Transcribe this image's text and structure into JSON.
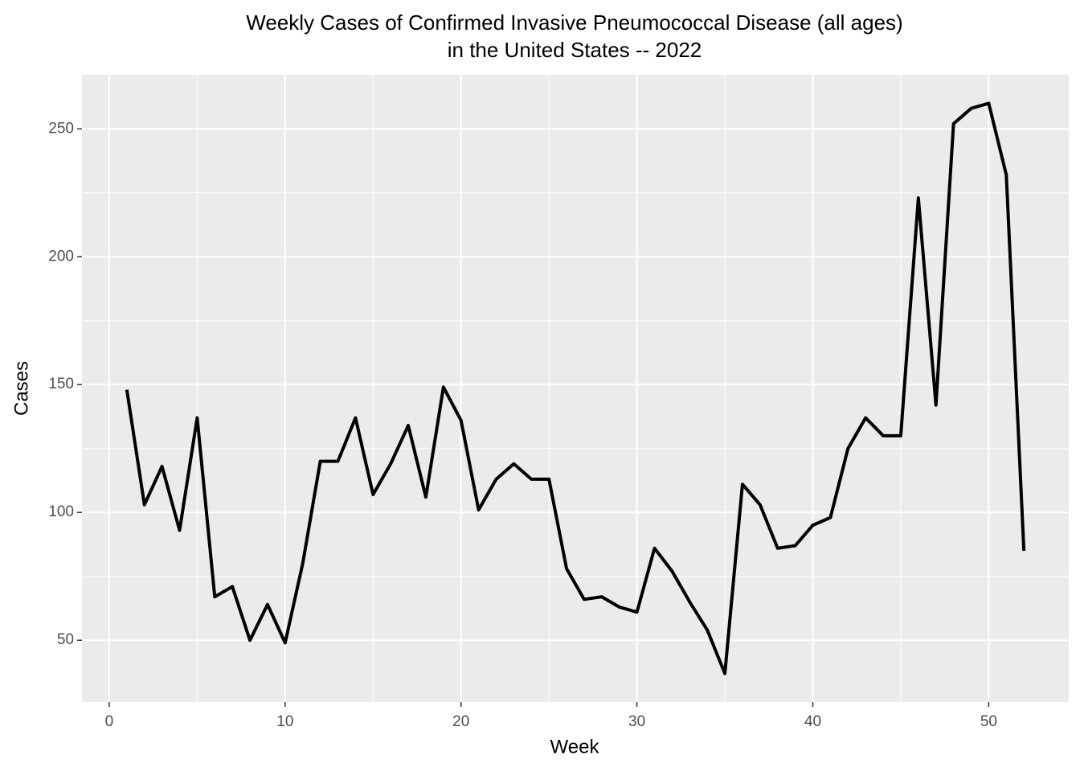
{
  "chart_data": {
    "type": "line",
    "title": [
      "Weekly Cases of Confirmed Invasive Pneumococcal Disease (all ages)",
      "in the United States -- 2022"
    ],
    "x_label": "Week",
    "y_label": "Cases",
    "x": [
      1,
      2,
      3,
      4,
      5,
      6,
      7,
      8,
      9,
      10,
      11,
      12,
      13,
      14,
      15,
      16,
      17,
      18,
      19,
      20,
      21,
      22,
      23,
      24,
      25,
      26,
      27,
      28,
      29,
      30,
      31,
      32,
      33,
      34,
      35,
      36,
      37,
      38,
      39,
      40,
      41,
      42,
      43,
      44,
      45,
      46,
      47,
      48,
      49,
      50,
      51,
      52
    ],
    "series": [
      {
        "color": "#000000",
        "values": [
          148,
          103,
          118,
          93,
          137,
          67,
          71,
          50,
          64,
          49,
          80,
          120,
          120,
          137,
          107,
          119,
          134,
          106,
          149,
          136,
          101,
          113,
          119,
          113,
          113,
          78,
          66,
          67,
          63,
          61,
          86,
          77,
          65,
          54,
          37,
          111,
          103,
          86,
          87,
          95,
          98,
          125,
          137,
          130,
          130,
          223,
          142,
          252,
          258,
          260,
          232,
          85
        ]
      }
    ],
    "xlim": [
      -1.55,
      54.55
    ],
    "xticks": [
      0,
      10,
      20,
      30,
      40,
      50
    ],
    "ylim": [
      25.85,
      271.15
    ],
    "yticks": [
      50,
      100,
      150,
      200,
      250
    ],
    "grid": true,
    "panel_color": "#ebebeb"
  }
}
